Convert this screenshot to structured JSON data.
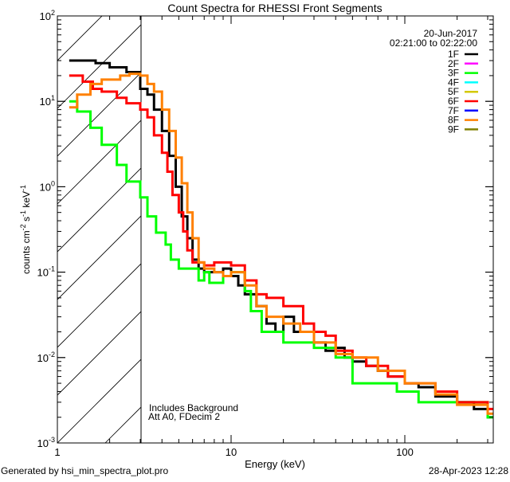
{
  "chart_data": {
    "type": "line",
    "title": "Count Spectra for RHESSI Front Segments",
    "xlabel": "Energy (keV)",
    "ylabel": "counts cm-2 s-1 keV-1",
    "xscale": "log",
    "yscale": "log",
    "xlim": [
      1,
      323
    ],
    "ylim": [
      0.001,
      100
    ],
    "x_ticks": [
      {
        "value": 1,
        "label": "1"
      },
      {
        "value": 10,
        "label": "10"
      },
      {
        "value": 100,
        "label": "100"
      }
    ],
    "y_ticks": [
      {
        "value": 100,
        "base": "10",
        "exp": "2"
      },
      {
        "value": 10,
        "base": "10",
        "exp": "1"
      },
      {
        "value": 1,
        "base": "10",
        "exp": "0"
      },
      {
        "value": 0.1,
        "base": "10",
        "exp": "-1"
      },
      {
        "value": 0.01,
        "base": "10",
        "exp": "-2"
      },
      {
        "value": 0.001,
        "base": "10",
        "exp": "-3"
      }
    ],
    "grid": false,
    "hatched_region_below_keV": 3,
    "legend_position": "top-right",
    "legend_header": [
      "20-Jun-2017",
      "02:21:00 to 02:22:00"
    ],
    "legend": [
      {
        "name": "1F",
        "color": "#000000"
      },
      {
        "name": "2F",
        "color": "#ff00ff"
      },
      {
        "name": "3F",
        "color": "#00ff00"
      },
      {
        "name": "4F",
        "color": "#00ffff"
      },
      {
        "name": "5F",
        "color": "#d4c800"
      },
      {
        "name": "6F",
        "color": "#ff0000"
      },
      {
        "name": "7F",
        "color": "#0000ff"
      },
      {
        "name": "8F",
        "color": "#ff8000"
      },
      {
        "name": "9F",
        "color": "#808000"
      }
    ],
    "annotations": [
      "Includes Background",
      "Att A0, FDecim 2"
    ],
    "series": [
      {
        "name": "1F",
        "color": "#000000",
        "x": [
          1.17,
          1.66,
          2.0,
          2.5,
          3.0,
          3.3,
          3.6,
          4.0,
          4.4,
          4.8,
          5.2,
          5.6,
          6.0,
          6.5,
          7,
          8,
          9,
          10,
          11,
          12,
          14,
          16,
          18,
          20,
          23,
          26,
          30,
          35,
          40,
          45,
          50,
          60,
          70,
          80,
          100,
          120,
          150,
          200,
          250,
          300,
          323
        ],
        "y": [
          30,
          28,
          25,
          22,
          14,
          12,
          8,
          4.5,
          2.3,
          1.0,
          0.45,
          0.25,
          0.14,
          0.11,
          0.1,
          0.1,
          0.11,
          0.09,
          0.07,
          0.055,
          0.04,
          0.025,
          0.02,
          0.03,
          0.02,
          0.02,
          0.015,
          0.012,
          0.013,
          0.01,
          0.009,
          0.008,
          0.007,
          0.006,
          0.005,
          0.0045,
          0.0035,
          0.003,
          0.0025,
          0.002,
          0.002
        ]
      },
      {
        "name": "3F",
        "color": "#00ff00",
        "x": [
          1.17,
          1.3,
          1.55,
          1.8,
          2.2,
          2.5,
          3.0,
          3.3,
          3.7,
          4.2,
          4.5,
          5,
          6,
          6.5,
          7,
          7.5,
          9,
          10,
          12,
          13,
          15,
          20,
          30,
          40,
          50,
          70,
          90,
          120,
          200,
          300,
          323
        ],
        "y": [
          10,
          7.6,
          4.9,
          3.1,
          1.8,
          1.15,
          0.75,
          0.45,
          0.29,
          0.21,
          0.14,
          0.11,
          0.11,
          0.08,
          0.1,
          0.075,
          0.09,
          0.1,
          0.06,
          0.035,
          0.02,
          0.015,
          0.013,
          0.01,
          0.005,
          0.005,
          0.004,
          0.003,
          0.003,
          0.002,
          0.002
        ]
      },
      {
        "name": "6F",
        "color": "#ff0000",
        "x": [
          1.17,
          1.4,
          1.6,
          1.8,
          2.2,
          2.5,
          3.0,
          3.3,
          3.6,
          4.0,
          4.3,
          4.6,
          5.0,
          5.3,
          5.6,
          6,
          7,
          8,
          9,
          10,
          12,
          14,
          16,
          20,
          23,
          26,
          30,
          35,
          40,
          50,
          60,
          80,
          100,
          150,
          200,
          300,
          323
        ],
        "y": [
          20,
          17,
          14,
          13,
          11,
          9.5,
          8,
          6.5,
          4,
          2.5,
          1.5,
          0.8,
          0.5,
          0.3,
          0.18,
          0.13,
          0.12,
          0.13,
          0.13,
          0.12,
          0.08,
          0.055,
          0.05,
          0.04,
          0.04,
          0.025,
          0.02,
          0.018,
          0.012,
          0.01,
          0.008,
          0.006,
          0.005,
          0.004,
          0.003,
          0.0025,
          0.0025
        ]
      },
      {
        "name": "8F",
        "color": "#ff8000",
        "x": [
          1.17,
          1.3,
          1.55,
          1.8,
          2.3,
          2.6,
          3.0,
          3.3,
          3.6,
          4.0,
          4.4,
          4.8,
          5.2,
          5.6,
          6.0,
          6.5,
          7,
          8,
          9,
          10,
          12,
          14,
          16,
          20,
          25,
          30,
          40,
          50,
          70,
          100,
          150,
          200,
          300,
          323
        ],
        "y": [
          8.5,
          12,
          16,
          18,
          20,
          21,
          20,
          16,
          13,
          8,
          4.5,
          2.2,
          1.1,
          0.5,
          0.25,
          0.13,
          0.11,
          0.1,
          0.09,
          0.1,
          0.07,
          0.04,
          0.03,
          0.025,
          0.02,
          0.015,
          0.011,
          0.01,
          0.007,
          0.005,
          0.0037,
          0.0028,
          0.0022,
          0.0022
        ]
      }
    ]
  },
  "footer": {
    "generated_by": "Generated by hsi_min_spectra_plot.pro",
    "timestamp": "28-Apr-2023 12:28"
  }
}
